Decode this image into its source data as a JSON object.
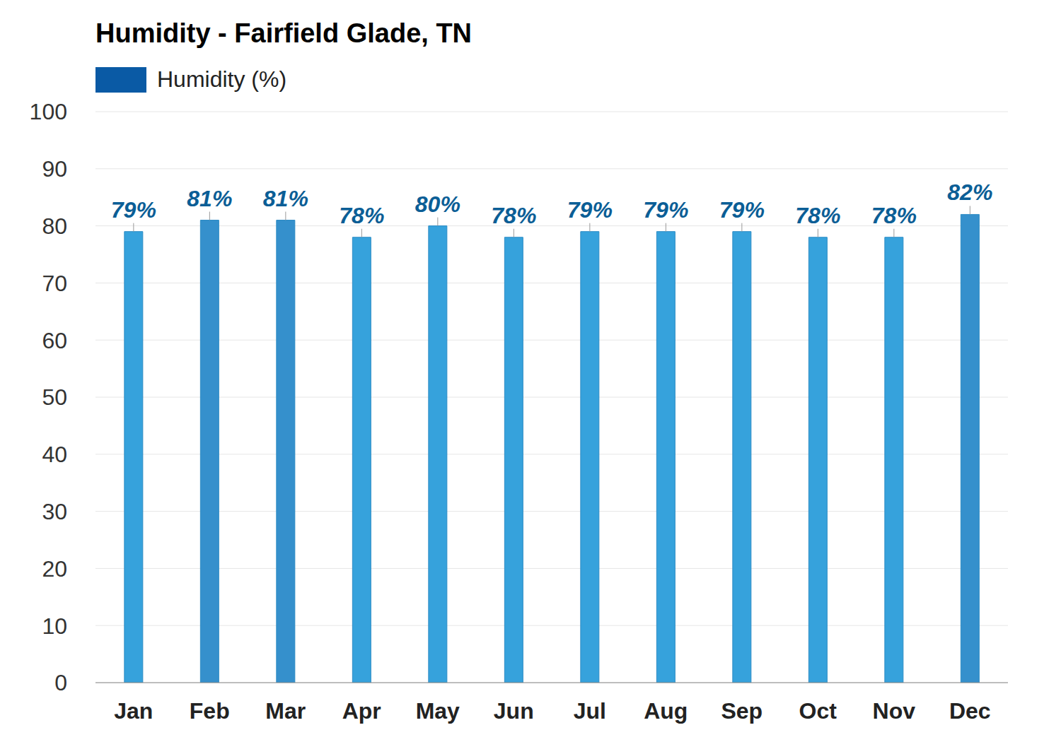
{
  "chart_data": {
    "type": "bar",
    "title": "Humidity - Fairfield Glade, TN",
    "categories": [
      "Jan",
      "Feb",
      "Mar",
      "Apr",
      "May",
      "Jun",
      "Jul",
      "Aug",
      "Sep",
      "Oct",
      "Nov",
      "Dec"
    ],
    "series": [
      {
        "name": "Humidity (%)",
        "color": "#0a5aa5",
        "values": [
          79,
          81,
          81,
          78,
          80,
          78,
          79,
          79,
          79,
          78,
          78,
          82
        ],
        "value_labels": [
          "79%",
          "81%",
          "81%",
          "78%",
          "80%",
          "78%",
          "79%",
          "79%",
          "79%",
          "78%",
          "78%",
          "82%"
        ],
        "colors": [
          "#36a2dc",
          "#3590cc",
          "#3590cc",
          "#36a2dc",
          "#36a2dc",
          "#36a2dc",
          "#36a2dc",
          "#36a2dc",
          "#36a2dc",
          "#36a2dc",
          "#36a2dc",
          "#3590cc"
        ]
      }
    ],
    "ylim": [
      0,
      100
    ],
    "yticks": [
      0,
      10,
      20,
      30,
      40,
      50,
      60,
      70,
      80,
      90,
      100
    ],
    "grid": true,
    "data_labels": true
  }
}
